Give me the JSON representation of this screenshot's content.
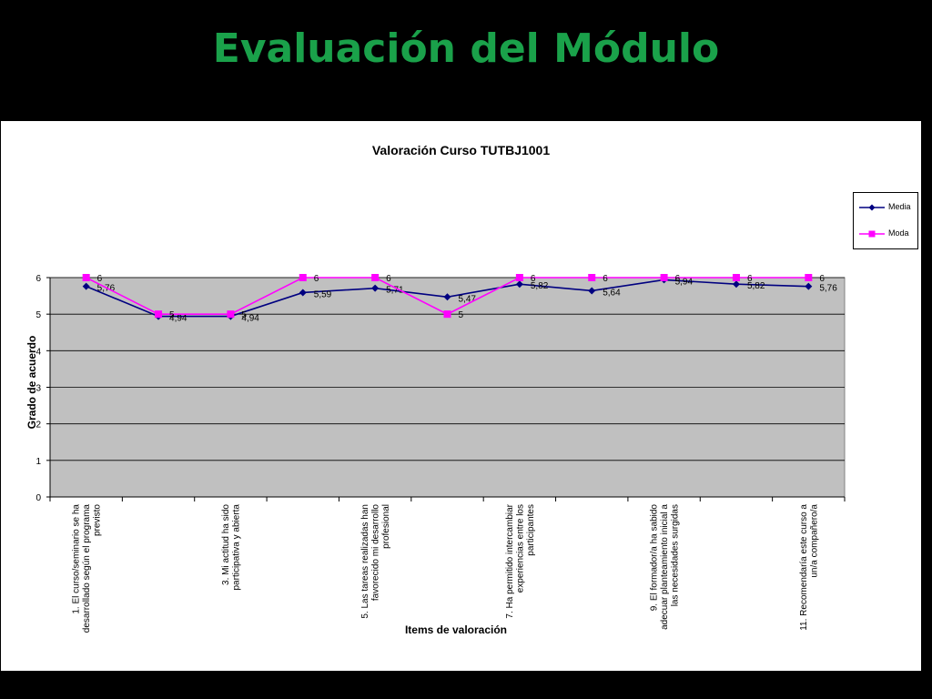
{
  "slide": {
    "title": "Evaluación del Módulo"
  },
  "colors": {
    "title_green": "#1aa14a",
    "media": "#000080",
    "moda": "#ff00ff",
    "plot_bg": "#c0c0c0"
  },
  "chart_data": {
    "type": "line",
    "title": "Valoración Curso TUTBJ1001",
    "xlabel": "Items de valoración",
    "ylabel": "Grado de acuerdo",
    "ylim": [
      0,
      6
    ],
    "yticks": [
      "0",
      "1",
      "2",
      "3",
      "4",
      "5",
      "6"
    ],
    "grid": true,
    "legend_position": "right",
    "categories": [
      "1. El curso/seminario se ha desarrollado según el programa previsto",
      "",
      "3. Mi actitud ha sido participativa y abierta",
      "",
      "5. Las tareas realizadas han favorecido mi desarrollo profesional",
      "",
      "7. Ha permitido intercambiar experiencias entre los participantes",
      "",
      "9. El formador/a ha sabido adecuar planteamiento inicial a las necesidades surgidas",
      "",
      "11. Recomendaría este curso a un/a compañero/a"
    ],
    "series": [
      {
        "name": "Media",
        "values": [
          5.76,
          4.94,
          4.94,
          5.59,
          5.71,
          5.47,
          5.82,
          5.64,
          5.94,
          5.82,
          5.76
        ],
        "labels": [
          "5,76",
          "4,94",
          "4,94",
          "5,59",
          "5,71",
          "5,47",
          "5,82",
          "5,64",
          "5,94",
          "5,82",
          "5,76"
        ]
      },
      {
        "name": "Moda",
        "values": [
          6,
          5,
          5,
          6,
          6,
          5,
          6,
          6,
          6,
          6,
          6
        ],
        "labels": [
          "6",
          "5",
          "5",
          "6",
          "6",
          "5",
          "6",
          "6",
          "6",
          "6",
          "6"
        ]
      }
    ]
  }
}
